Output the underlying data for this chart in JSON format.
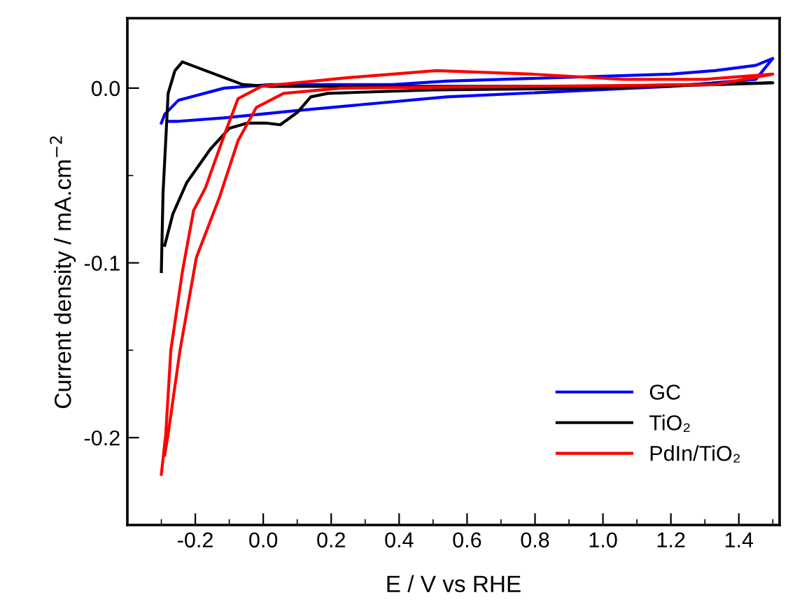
{
  "chart_data": {
    "type": "line",
    "xlabel": "E / V vs RHE",
    "ylabel": "Current density / mA.cm$^{−2}$",
    "xlim": [
      -0.4,
      1.52
    ],
    "ylim": [
      -0.25,
      0.04
    ],
    "xticks": [
      {
        "value": -0.2,
        "label": "-0.2"
      },
      {
        "value": 0.0,
        "label": "0.0"
      },
      {
        "value": 0.2,
        "label": "0.2"
      },
      {
        "value": 0.4,
        "label": "0.4"
      },
      {
        "value": 0.6,
        "label": "0.6"
      },
      {
        "value": 0.8,
        "label": "0.8"
      },
      {
        "value": 1.0,
        "label": "1.0"
      },
      {
        "value": 1.2,
        "label": "1.2"
      },
      {
        "value": 1.4,
        "label": "1.4"
      }
    ],
    "yticks": [
      {
        "value": -0.2,
        "label": "-0.2"
      },
      {
        "value": -0.1,
        "label": "-0.1"
      },
      {
        "value": 0.0,
        "label": "0.0"
      }
    ],
    "grid": false,
    "legend": "bottom right",
    "marker": "none",
    "line_style": "solid",
    "series": [
      {
        "name": "GC",
        "color": "#0000ff",
        "x": [
          -0.3,
          -0.29,
          -0.25,
          -0.115,
          0.02,
          0.38,
          0.54,
          1.2,
          1.33,
          1.45,
          1.5,
          1.45,
          1.2,
          0.54,
          0.09,
          -0.115,
          -0.25,
          -0.28
        ],
        "values": [
          -0.02,
          -0.015,
          -0.007,
          0.0,
          0.002,
          0.002,
          0.004,
          0.008,
          0.01,
          0.013,
          0.017,
          0.005,
          0.001,
          -0.005,
          -0.013,
          -0.017,
          -0.019,
          -0.019
        ]
      },
      {
        "name": "TiO₂",
        "color": "#000000",
        "x": [
          -0.3,
          -0.295,
          -0.287,
          -0.28,
          -0.26,
          -0.238,
          -0.17,
          -0.06,
          0.02,
          0.5,
          1.0,
          1.5,
          1.0,
          0.5,
          0.19,
          0.14,
          0.1,
          0.05,
          0.008,
          -0.046,
          -0.1,
          -0.156,
          -0.225,
          -0.266,
          -0.29
        ],
        "values": [
          -0.105,
          -0.06,
          -0.03,
          -0.003,
          0.01,
          0.015,
          0.01,
          0.002,
          0.001,
          0.001,
          0.001,
          0.003,
          0.0,
          -0.001,
          -0.003,
          -0.005,
          -0.014,
          -0.021,
          -0.02,
          -0.02,
          -0.023,
          -0.035,
          -0.054,
          -0.072,
          -0.09
        ]
      },
      {
        "name": "PdIn/TiO₂",
        "color": "#ff0000",
        "x": [
          -0.3,
          -0.287,
          -0.272,
          -0.238,
          -0.205,
          -0.17,
          -0.115,
          -0.074,
          -0.005,
          0.25,
          0.51,
          0.65,
          0.79,
          1.06,
          1.3,
          1.5,
          1.33,
          0.79,
          0.23,
          0.06,
          -0.02,
          -0.074,
          -0.128,
          -0.197,
          -0.245,
          -0.28,
          -0.29
        ],
        "values": [
          -0.221,
          -0.198,
          -0.15,
          -0.105,
          -0.07,
          -0.057,
          -0.027,
          -0.006,
          0.001,
          0.006,
          0.01,
          0.009,
          0.008,
          0.005,
          0.005,
          0.008,
          0.002,
          0.001,
          0.0,
          -0.003,
          -0.011,
          -0.03,
          -0.062,
          -0.097,
          -0.15,
          -0.198,
          -0.21
        ]
      }
    ]
  }
}
